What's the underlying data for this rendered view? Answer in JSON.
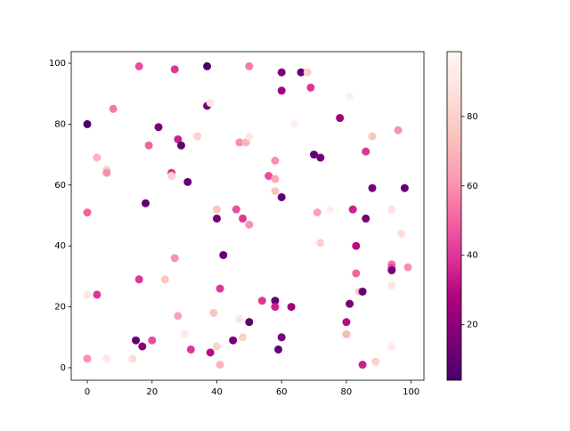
{
  "chart_data": {
    "type": "scatter",
    "x": [
      0,
      0,
      0,
      0,
      3,
      3,
      6,
      6,
      6,
      8,
      14,
      15,
      16,
      16,
      17,
      18,
      19,
      20,
      22,
      24,
      26,
      26,
      27,
      27,
      28,
      28,
      29,
      30,
      31,
      32,
      34,
      37,
      37,
      38,
      38,
      39,
      40,
      40,
      40,
      41,
      41,
      42,
      45,
      46,
      47,
      47,
      48,
      48,
      49,
      50,
      50,
      50,
      50,
      54,
      56,
      58,
      58,
      58,
      58,
      58,
      59,
      60,
      60,
      60,
      60,
      63,
      64,
      66,
      68,
      69,
      70,
      71,
      72,
      72,
      75,
      78,
      80,
      80,
      81,
      81,
      82,
      83,
      83,
      84,
      85,
      85,
      86,
      86,
      88,
      88,
      89,
      94,
      94,
      94,
      94,
      94,
      94,
      96,
      97,
      98,
      99
    ],
    "values": [
      80,
      51,
      24,
      3,
      69,
      24,
      65,
      64,
      3,
      85,
      3,
      9,
      99,
      29,
      7,
      54,
      73,
      9,
      79,
      29,
      64,
      63,
      98,
      36,
      75,
      17,
      73,
      11,
      61,
      6,
      76,
      99,
      86,
      87,
      5,
      18,
      52,
      49,
      7,
      26,
      1,
      37,
      9,
      52,
      74,
      16,
      49,
      10,
      74,
      99,
      76,
      47,
      15,
      22,
      63,
      68,
      62,
      58,
      22,
      20,
      6,
      97,
      91,
      56,
      10,
      20,
      80,
      97,
      97,
      92,
      70,
      51,
      69,
      41,
      52,
      82,
      15,
      11,
      89,
      21,
      52,
      40,
      31,
      25,
      25,
      1,
      71,
      49,
      76,
      59,
      2,
      52,
      34,
      33,
      32,
      27,
      7,
      78,
      44,
      59,
      33
    ],
    "color_values": [
      5,
      50,
      90,
      60,
      70,
      40,
      80,
      60,
      92,
      55,
      85,
      10,
      45,
      40,
      20,
      10,
      50,
      45,
      15,
      75,
      40,
      80,
      40,
      60,
      35,
      65,
      10,
      92,
      10,
      40,
      80,
      5,
      15,
      90,
      30,
      75,
      75,
      15,
      80,
      40,
      70,
      10,
      15,
      45,
      60,
      90,
      40,
      80,
      70,
      55,
      90,
      60,
      10,
      40,
      45,
      60,
      65,
      75,
      10,
      35,
      10,
      15,
      25,
      10,
      15,
      25,
      95,
      10,
      80,
      40,
      10,
      65,
      15,
      80,
      95,
      25,
      30,
      70,
      95,
      15,
      35,
      30,
      50,
      75,
      10,
      35,
      40,
      15,
      75,
      15,
      80,
      88,
      55,
      45,
      15,
      90,
      92,
      60,
      85,
      10,
      60
    ],
    "colormap": [
      "#49006a",
      "#7a0177",
      "#ae017e",
      "#dd3497",
      "#f768a1",
      "#fa9fb5",
      "#fcc5c0",
      "#fde0dd",
      "#fff7f3"
    ],
    "xlim": [
      -4.95,
      103.95
    ],
    "ylim": [
      -4.1,
      103.8
    ],
    "xticks": [
      0,
      20,
      40,
      60,
      80,
      100
    ],
    "yticks": [
      0,
      20,
      40,
      60,
      80,
      100
    ],
    "clim": [
      4,
      98.7
    ],
    "cticks": [
      20,
      40,
      60,
      80
    ]
  }
}
